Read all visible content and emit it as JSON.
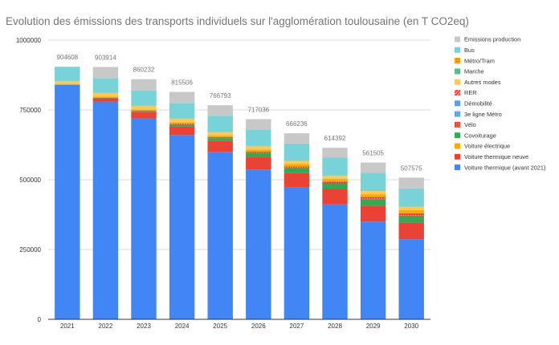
{
  "chart_data": {
    "type": "bar",
    "stacked": true,
    "title": "Evolution des émissions des transports individuels sur l'agglomération toulousaine (en T CO2eq)",
    "xlabel": "",
    "ylabel": "",
    "ylim": [
      0,
      1000000
    ],
    "yticks": [
      0,
      250000,
      500000,
      750000,
      1000000
    ],
    "grid": true,
    "legend_position": "right",
    "categories": [
      "2021",
      "2022",
      "2023",
      "2024",
      "2025",
      "2026",
      "2027",
      "2028",
      "2029",
      "2030"
    ],
    "totals": [
      904608,
      903914,
      860232,
      815506,
      766793,
      717036,
      666236,
      614392,
      561505,
      507575
    ],
    "series": [
      {
        "name": "Voiture thermique (avant 2021)",
        "color": "#4285f4",
        "values": [
          840000,
          780000,
          720000,
          660000,
          600000,
          537000,
          473000,
          412000,
          350000,
          287000
        ]
      },
      {
        "name": "Voiture thermique neuve",
        "color": "#ea4335",
        "values": [
          0,
          12000,
          22000,
          32000,
          40000,
          46000,
          52000,
          55000,
          57000,
          58000
        ]
      },
      {
        "name": "Covoiturage",
        "color": "#34a853",
        "values": [
          0,
          2000,
          4000,
          6000,
          9000,
          13000,
          17000,
          20000,
          23000,
          26000
        ]
      },
      {
        "name": "Vélo",
        "color": "#ea4335",
        "pattern": "dots",
        "values": [
          0,
          1000,
          2000,
          3000,
          4000,
          5000,
          6000,
          7000,
          8000,
          9000
        ]
      },
      {
        "name": "Voiture électrique",
        "color": "#f9ab00",
        "values": [
          2000,
          3000,
          4000,
          5000,
          6000,
          7000,
          8000,
          9000,
          10000,
          11000
        ]
      },
      {
        "name": "3e ligne Métro",
        "color": "#4fa3e8",
        "pattern": "dots",
        "values": [
          0,
          0,
          0,
          0,
          0,
          0,
          0,
          0,
          0,
          0
        ]
      },
      {
        "name": "Démobilité",
        "color": "#5b9cf0",
        "values": [
          0,
          0,
          0,
          0,
          0,
          0,
          0,
          0,
          0,
          0
        ]
      },
      {
        "name": "RER",
        "color": "#ea4335",
        "pattern": "stripes",
        "values": [
          0,
          0,
          0,
          0,
          0,
          0,
          0,
          0,
          0,
          0
        ]
      },
      {
        "name": "Autres modes",
        "color": "#fbc85d",
        "values": [
          12000,
          12000,
          12000,
          12000,
          12000,
          12000,
          12000,
          12000,
          12000,
          12000
        ]
      },
      {
        "name": "Marche",
        "color": "#57bb8a",
        "values": [
          1000,
          1000,
          1000,
          1000,
          1000,
          1000,
          1000,
          1000,
          1000,
          1000
        ]
      },
      {
        "name": "Métro/Tram",
        "color": "#f9ab00",
        "pattern": "dots",
        "values": [
          0,
          0,
          0,
          0,
          0,
          0,
          0,
          0,
          0,
          0
        ]
      },
      {
        "name": "Bus",
        "color": "#78d3d9",
        "values": [
          49608,
          53000,
          55000,
          56000,
          57000,
          59000,
          61000,
          63000,
          64000,
          65000
        ]
      },
      {
        "name": "Emissions production",
        "color": "#c8c8c8",
        "values": [
          0,
          39914,
          40232,
          39506,
          37793,
          37036,
          36236,
          35392,
          36505,
          38575
        ]
      }
    ],
    "legend_order": [
      "Emissions production",
      "Bus",
      "Métro/Tram",
      "Marche",
      "Autres modes",
      "RER",
      "Démobilité",
      "3e ligne Métro",
      "Vélo",
      "Covoiturage",
      "Voiture électrique",
      "Voiture thermique neuve",
      "Voiture thermique (avant 2021)"
    ]
  }
}
